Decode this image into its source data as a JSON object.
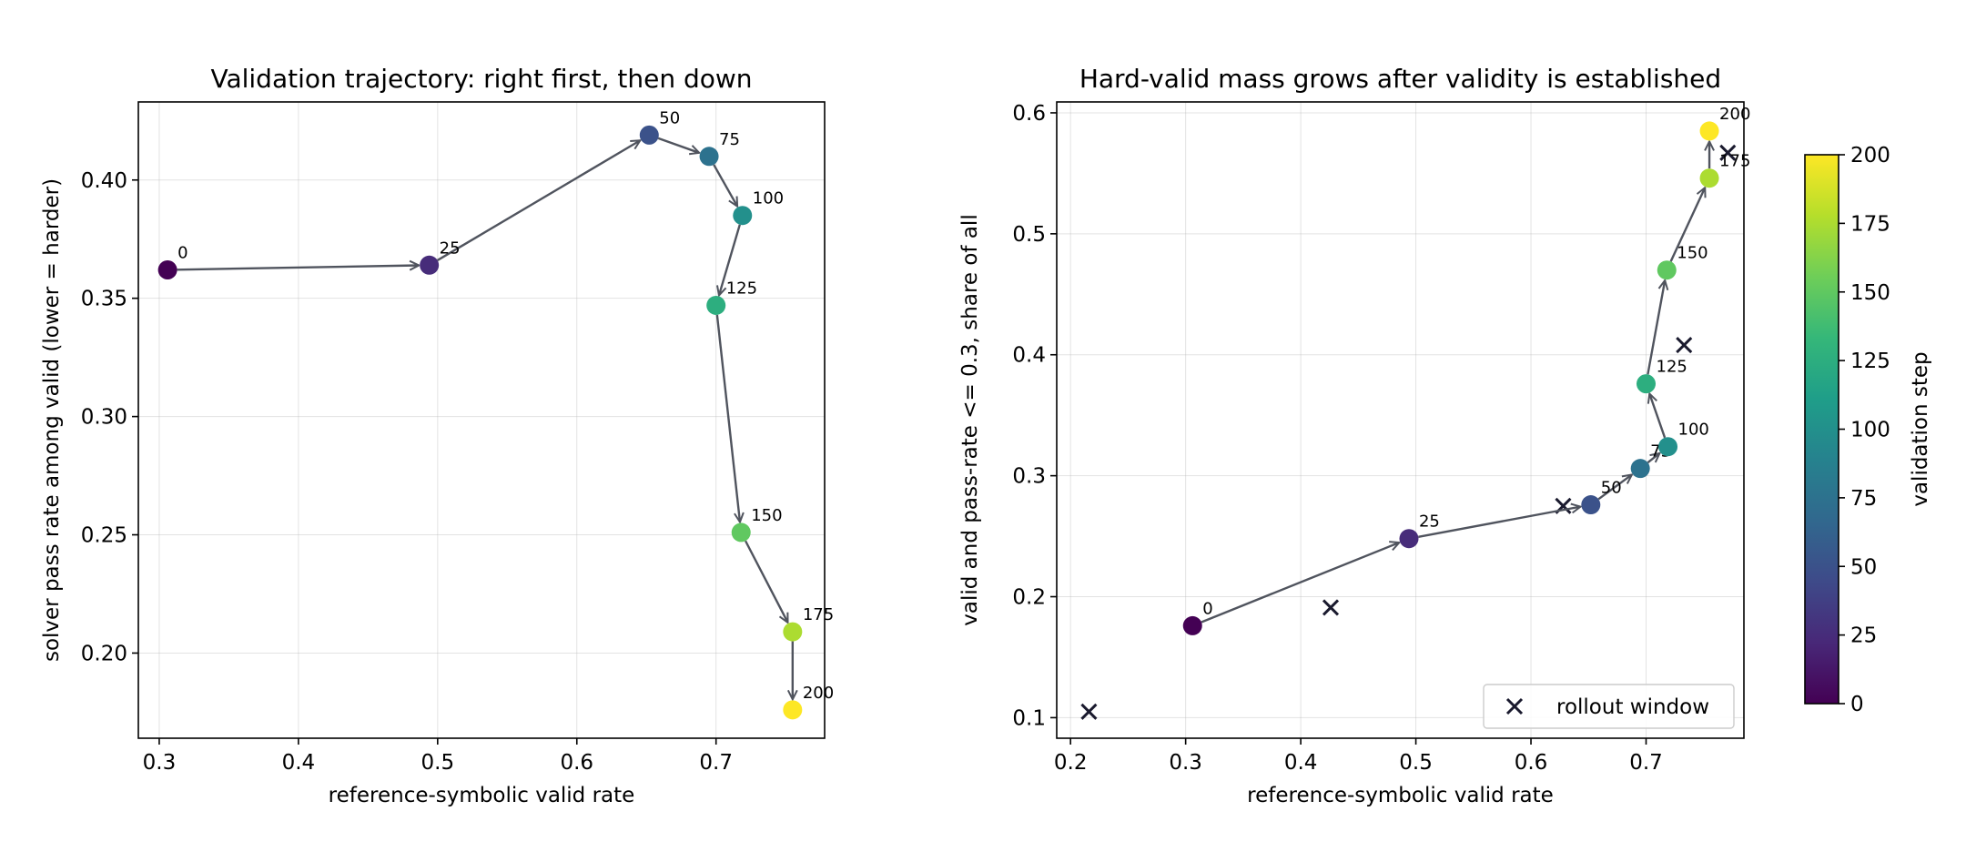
{
  "chart_data": [
    {
      "type": "line",
      "title": "Validation trajectory: right first, then down",
      "xlabel": "reference-symbolic valid rate",
      "ylabel": "solver pass rate among valid (lower = harder)",
      "xlim": [
        0.285,
        0.778
      ],
      "ylim": [
        0.164,
        0.433
      ],
      "xticks": [
        "0.3",
        "0.4",
        "0.5",
        "0.6",
        "0.7"
      ],
      "yticks": [
        "0.20",
        "0.25",
        "0.30",
        "0.35",
        "0.40"
      ],
      "grid": true,
      "points": [
        {
          "label": "0",
          "step": 0,
          "x": 0.306,
          "y": 0.362
        },
        {
          "label": "25",
          "step": 25,
          "x": 0.494,
          "y": 0.364
        },
        {
          "label": "50",
          "step": 50,
          "x": 0.652,
          "y": 0.419
        },
        {
          "label": "75",
          "step": 75,
          "x": 0.695,
          "y": 0.41
        },
        {
          "label": "100",
          "step": 100,
          "x": 0.719,
          "y": 0.385
        },
        {
          "label": "125",
          "step": 125,
          "x": 0.7,
          "y": 0.347
        },
        {
          "label": "150",
          "step": 150,
          "x": 0.718,
          "y": 0.251
        },
        {
          "label": "175",
          "step": 175,
          "x": 0.755,
          "y": 0.209
        },
        {
          "label": "200",
          "step": 200,
          "x": 0.755,
          "y": 0.176
        }
      ]
    },
    {
      "type": "line",
      "title": "Hard-valid mass grows after validity is established",
      "xlabel": "reference-symbolic valid rate",
      "ylabel": "valid and pass-rate <= 0.3, share of all",
      "xlim": [
        0.188,
        0.785
      ],
      "ylim": [
        0.083,
        0.609
      ],
      "xticks": [
        "0.2",
        "0.3",
        "0.4",
        "0.5",
        "0.6",
        "0.7"
      ],
      "yticks": [
        "0.1",
        "0.2",
        "0.3",
        "0.4",
        "0.5",
        "0.6"
      ],
      "grid": true,
      "legend": {
        "position": "lower-right",
        "label": "rollout window"
      },
      "points": [
        {
          "label": "0",
          "step": 0,
          "x": 0.306,
          "y": 0.176
        },
        {
          "label": "25",
          "step": 25,
          "x": 0.494,
          "y": 0.248
        },
        {
          "label": "50",
          "step": 50,
          "x": 0.652,
          "y": 0.276
        },
        {
          "label": "75",
          "step": 75,
          "x": 0.695,
          "y": 0.306
        },
        {
          "label": "100",
          "step": 100,
          "x": 0.719,
          "y": 0.324
        },
        {
          "label": "125",
          "step": 125,
          "x": 0.7,
          "y": 0.376
        },
        {
          "label": "150",
          "step": 150,
          "x": 0.718,
          "y": 0.47
        },
        {
          "label": "175",
          "step": 175,
          "x": 0.755,
          "y": 0.546
        },
        {
          "label": "200",
          "step": 200,
          "x": 0.755,
          "y": 0.585
        }
      ],
      "rollout_window": [
        {
          "x": 0.216,
          "y": 0.105
        },
        {
          "x": 0.426,
          "y": 0.191
        },
        {
          "x": 0.628,
          "y": 0.275
        },
        {
          "x": 0.733,
          "y": 0.408
        },
        {
          "x": 0.771,
          "y": 0.567
        }
      ]
    }
  ],
  "colorbar": {
    "label": "validation step",
    "min": 0,
    "max": 200,
    "ticks": [
      "0",
      "25",
      "50",
      "75",
      "100",
      "125",
      "150",
      "175",
      "200"
    ]
  },
  "colors": {
    "arrow": "#50545e",
    "marker_x": "#1a1a2e",
    "colormap": "viridis"
  }
}
